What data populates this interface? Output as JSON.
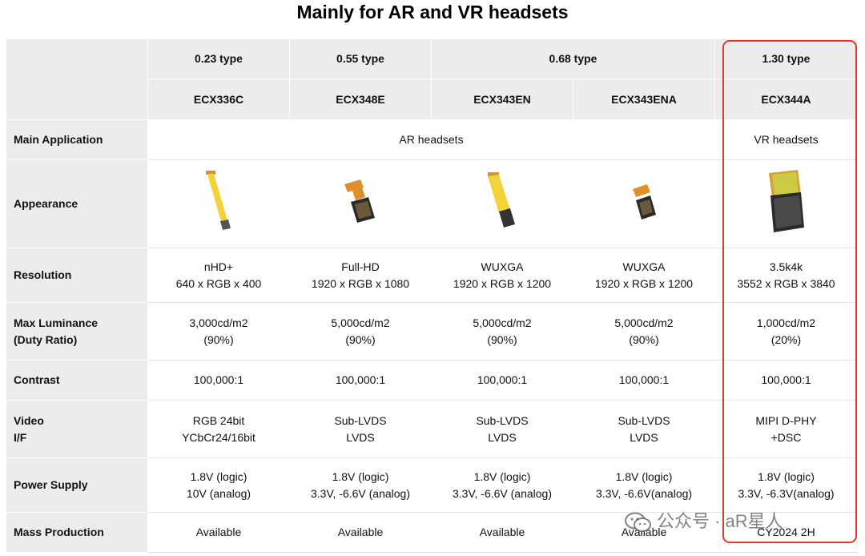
{
  "title": "Mainly for AR and VR headsets",
  "types": [
    "0.23 type",
    "0.55 type",
    "0.68 type",
    "1.30 type"
  ],
  "models": [
    "ECX336C",
    "ECX348E",
    "ECX343EN",
    "ECX343ENA",
    "ECX344A"
  ],
  "rows": {
    "main_application": {
      "label": "Main Application",
      "ar": "AR headsets",
      "vr": "VR headsets"
    },
    "appearance": {
      "label": "Appearance"
    },
    "resolution": {
      "label": "Resolution",
      "values": [
        [
          "nHD+",
          "640 x RGB x 400"
        ],
        [
          "Full-HD",
          "1920 x RGB x 1080"
        ],
        [
          "WUXGA",
          "1920 x RGB x 1200"
        ],
        [
          "WUXGA",
          "1920 x RGB x 1200"
        ],
        [
          "3.5k4k",
          "3552 x RGB x 3840"
        ]
      ]
    },
    "max_luminance": {
      "label_line1": "Max Luminance",
      "label_line2": "(Duty Ratio)",
      "values": [
        [
          "3,000cd/m2",
          "(90%)"
        ],
        [
          "5,000cd/m2",
          "(90%)"
        ],
        [
          "5,000cd/m2",
          "(90%)"
        ],
        [
          "5,000cd/m2",
          "(90%)"
        ],
        [
          "1,000cd/m2",
          "(20%)"
        ]
      ]
    },
    "contrast": {
      "label": "Contrast",
      "values": [
        "100,000:1",
        "100,000:1",
        "100,000:1",
        "100,000:1",
        "100,000:1"
      ]
    },
    "video_if": {
      "label_line1": "Video",
      "label_line2": "I/F",
      "values": [
        [
          "RGB 24bit",
          "YCbCr24/16bit"
        ],
        [
          "Sub-LVDS",
          "LVDS"
        ],
        [
          "Sub-LVDS",
          "LVDS"
        ],
        [
          "Sub-LVDS",
          "LVDS"
        ],
        [
          "MIPI D-PHY",
          "+DSC"
        ]
      ]
    },
    "power_supply": {
      "label": "Power Supply",
      "values": [
        [
          "1.8V (logic)",
          "10V (analog)"
        ],
        [
          "1.8V (logic)",
          "3.3V, -6.6V (analog)"
        ],
        [
          "1.8V (logic)",
          "3.3V, -6.6V (analog)"
        ],
        [
          "1.8V (logic)",
          "3.3V, -6.6V(analog)"
        ],
        [
          "1.8V (logic)",
          "3.3V, -6.3V(analog)"
        ]
      ]
    },
    "mass_production": {
      "label": "Mass Production",
      "values": [
        "Available",
        "Available",
        "Available",
        "Available",
        "CY2024 2H"
      ]
    }
  },
  "watermark": "公众号 · aR星人",
  "colors": {
    "header_bg": "#ececec",
    "highlight": "#e03a2a",
    "flex_yellow": "#f2d43a",
    "flex_orange": "#e0902a"
  }
}
